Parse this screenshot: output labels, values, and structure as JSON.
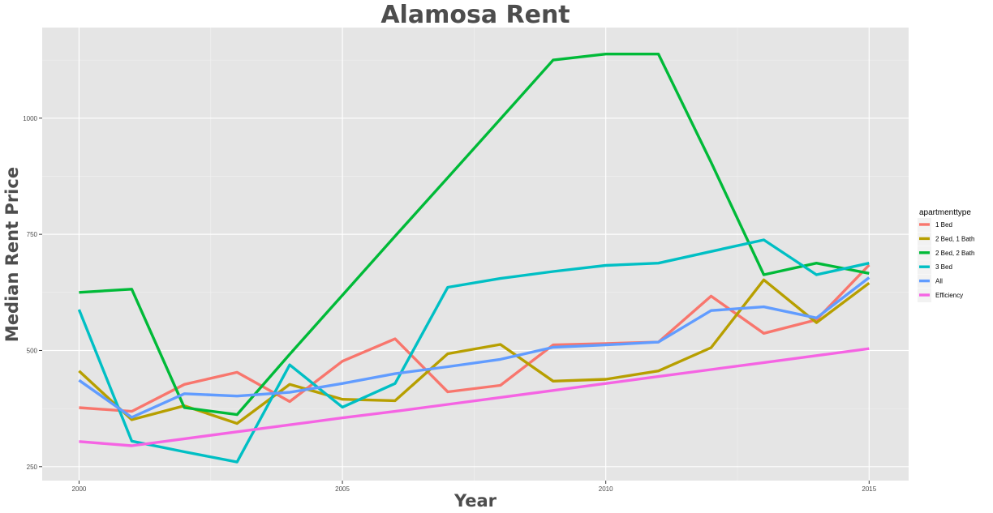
{
  "chart_data": {
    "type": "line",
    "title": "Alamosa Rent",
    "xlabel": "Year",
    "ylabel": "Median Rent Price",
    "xlim": [
      1999.3,
      2015.75
    ],
    "ylim": [
      220,
      1195
    ],
    "x_ticks": [
      2000,
      2005,
      2010,
      2015
    ],
    "y_ticks": [
      250,
      500,
      750,
      1000
    ],
    "grid": true,
    "legend": {
      "title": "apartmenttype",
      "position": "right"
    },
    "x": [
      2000,
      2001,
      2002,
      2003,
      2004,
      2005,
      2006,
      2007,
      2008,
      2009,
      2010,
      2011,
      2012,
      2013,
      2014,
      2015
    ],
    "series": [
      {
        "name": "1 Bed",
        "color": "#F8766D",
        "values": [
          377,
          369,
          427,
          453,
          390,
          477,
          525,
          411,
          425,
          512,
          515,
          518,
          617,
          537,
          566,
          684
        ]
      },
      {
        "name": "2 Bed, 1 Bath",
        "color": "#B79F00",
        "values": [
          456,
          351,
          381,
          343,
          427,
          395,
          392,
          493,
          513,
          434,
          438,
          456,
          506,
          652,
          560,
          645
        ]
      },
      {
        "name": "2 Bed, 2 Bath",
        "color": "#00BA38",
        "values": [
          625,
          632,
          377,
          362,
          492,
          619,
          746,
          872,
          998,
          1125,
          1138,
          1138,
          905,
          663,
          688,
          666
        ]
      },
      {
        "name": "3 Bed",
        "color": "#00BFC4",
        "values": [
          588,
          305,
          282,
          260,
          469,
          378,
          429,
          636,
          655,
          670,
          683,
          688,
          713,
          738,
          663,
          688
        ]
      },
      {
        "name": "All",
        "color": "#619CFF",
        "values": [
          436,
          356,
          407,
          402,
          410,
          429,
          450,
          465,
          481,
          507,
          512,
          518,
          586,
          594,
          570,
          657
        ]
      },
      {
        "name": "Efficiency",
        "color": "#F564E3",
        "values": [
          304,
          295,
          310,
          325,
          340,
          355,
          369,
          384,
          399,
          414,
          429,
          444,
          459,
          474,
          489,
          504
        ]
      }
    ]
  }
}
